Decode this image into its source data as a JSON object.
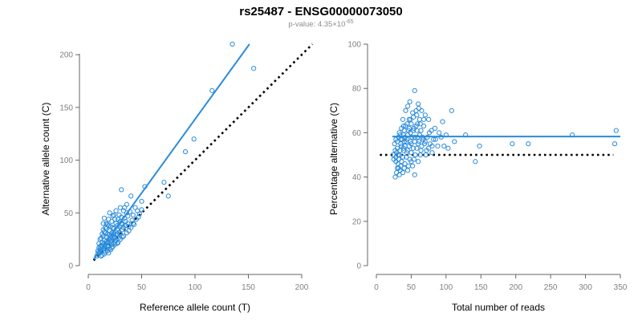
{
  "header": {
    "title": "rs25487 - ENSG00000073050",
    "pvalue_prefix": "p-value: 4.35×10",
    "pvalue_exponent": "-65"
  },
  "colors": {
    "points": "#2a8bdc",
    "fit": "#2a8bdc",
    "reference": "#000000",
    "axis": "#666666",
    "tick_text": "#808080"
  },
  "chart_data": [
    {
      "type": "scatter",
      "name": "left",
      "xlabel": "Reference allele count (T)",
      "ylabel": "Alternative allele count (C)",
      "xlim": [
        0,
        200
      ],
      "ylim": [
        0,
        210
      ],
      "xticks": [
        0,
        50,
        100,
        150,
        200
      ],
      "yticks": [
        0,
        50,
        100,
        150,
        200
      ],
      "fit_line": [
        [
          5,
          6
        ],
        [
          151,
          210
        ]
      ],
      "reference_line": [
        [
          5,
          5
        ],
        [
          210,
          210
        ]
      ],
      "points": [
        [
          135,
          210
        ],
        [
          155,
          187
        ],
        [
          116,
          166
        ],
        [
          99,
          120
        ],
        [
          91,
          108
        ],
        [
          75,
          66
        ],
        [
          71,
          79
        ],
        [
          53,
          75
        ],
        [
          50,
          61
        ],
        [
          40,
          66
        ],
        [
          36,
          58
        ],
        [
          34,
          55
        ],
        [
          31,
          72
        ],
        [
          36,
          50
        ],
        [
          42,
          48
        ],
        [
          37,
          40
        ],
        [
          34,
          45
        ],
        [
          32,
          39
        ],
        [
          30,
          42
        ],
        [
          29,
          48
        ],
        [
          28,
          35
        ],
        [
          27,
          38
        ],
        [
          25,
          44
        ],
        [
          24,
          30
        ],
        [
          23,
          36
        ],
        [
          22,
          42
        ],
        [
          21,
          28
        ],
        [
          20,
          33
        ],
        [
          19,
          25
        ],
        [
          19,
          38
        ],
        [
          18,
          30
        ],
        [
          18,
          22
        ],
        [
          17,
          27
        ],
        [
          17,
          35
        ],
        [
          16,
          20
        ],
        [
          16,
          31
        ],
        [
          15,
          24
        ],
        [
          15,
          18
        ],
        [
          14,
          28
        ],
        [
          14,
          16
        ],
        [
          13,
          22
        ],
        [
          13,
          30
        ],
        [
          12,
          14
        ],
        [
          12,
          19
        ],
        [
          11,
          25
        ],
        [
          11,
          12
        ],
        [
          10,
          17
        ],
        [
          10,
          21
        ],
        [
          9,
          14
        ],
        [
          9,
          11
        ],
        [
          8,
          9
        ],
        [
          14,
          40
        ],
        [
          15,
          45
        ],
        [
          20,
          50
        ],
        [
          26,
          52
        ],
        [
          30,
          55
        ],
        [
          24,
          48
        ],
        [
          22,
          20
        ],
        [
          26,
          24
        ],
        [
          28,
          26
        ],
        [
          30,
          30
        ],
        [
          32,
          34
        ],
        [
          35,
          38
        ],
        [
          38,
          37
        ],
        [
          25,
          22
        ],
        [
          27,
          30
        ],
        [
          29,
          31
        ],
        [
          33,
          28
        ],
        [
          18,
          14
        ],
        [
          20,
          16
        ],
        [
          22,
          17
        ],
        [
          16,
          13
        ],
        [
          13,
          10
        ],
        [
          12,
          9
        ],
        [
          11,
          15
        ],
        [
          19,
          19
        ],
        [
          21,
          23
        ],
        [
          23,
          25
        ],
        [
          25,
          27
        ],
        [
          24,
          35
        ],
        [
          26,
          40
        ],
        [
          28,
          44
        ],
        [
          31,
          46
        ],
        [
          33,
          52
        ],
        [
          37,
          47
        ],
        [
          39,
          51
        ],
        [
          44,
          55
        ],
        [
          46,
          52
        ],
        [
          41,
          43
        ],
        [
          43,
          39
        ],
        [
          47,
          46
        ],
        [
          15,
          32
        ],
        [
          17,
          40
        ],
        [
          19,
          44
        ],
        [
          21,
          37
        ],
        [
          23,
          47
        ],
        [
          12,
          26
        ],
        [
          14,
          34
        ],
        [
          16,
          36
        ],
        [
          18,
          39
        ],
        [
          20,
          29
        ],
        [
          22,
          31
        ],
        [
          13,
          18
        ],
        [
          15,
          21
        ],
        [
          17,
          23
        ],
        [
          10,
          13
        ],
        [
          11,
          18
        ],
        [
          27,
          34
        ],
        [
          29,
          37
        ],
        [
          31,
          40
        ],
        [
          33,
          36
        ],
        [
          35,
          42
        ],
        [
          24,
          27
        ],
        [
          26,
          29
        ],
        [
          28,
          22
        ],
        [
          30,
          25
        ],
        [
          32,
          27
        ],
        [
          36,
          31
        ],
        [
          38,
          33
        ],
        [
          40,
          36
        ],
        [
          42,
          40
        ],
        [
          45,
          44
        ],
        [
          48,
          49
        ],
        [
          50,
          53
        ],
        [
          19,
          12
        ],
        [
          21,
          15
        ],
        [
          23,
          18
        ],
        [
          25,
          20
        ],
        [
          27,
          21
        ],
        [
          15,
          11
        ],
        [
          16,
          16
        ],
        [
          18,
          18
        ],
        [
          20,
          21
        ],
        [
          22,
          24
        ],
        [
          24,
          26
        ]
      ]
    },
    {
      "type": "scatter",
      "name": "right",
      "xlabel": "Total number of reads",
      "ylabel": "Percentage alternative (C)",
      "xlim": [
        0,
        350
      ],
      "ylim": [
        0,
        100
      ],
      "xticks": [
        0,
        50,
        100,
        150,
        200,
        250,
        300,
        350
      ],
      "yticks": [
        0,
        20,
        40,
        60,
        80,
        100
      ],
      "fit_line": [
        [
          23,
          58.3
        ],
        [
          350,
          58.3
        ]
      ],
      "reference_line": [
        [
          5,
          50
        ],
        [
          340,
          50
        ]
      ],
      "points": [
        [
          55,
          79
        ],
        [
          48,
          74
        ],
        [
          45,
          72
        ],
        [
          60,
          73
        ],
        [
          42,
          70
        ],
        [
          65,
          70
        ],
        [
          52,
          69
        ],
        [
          108,
          70
        ],
        [
          58,
          68
        ],
        [
          70,
          68
        ],
        [
          38,
          66
        ],
        [
          47,
          66
        ],
        [
          62,
          66
        ],
        [
          75,
          66
        ],
        [
          44,
          64
        ],
        [
          50,
          64
        ],
        [
          57,
          63
        ],
        [
          68,
          63
        ],
        [
          95,
          65
        ],
        [
          84,
          62
        ],
        [
          36,
          62
        ],
        [
          40,
          61
        ],
        [
          46,
          61
        ],
        [
          53,
          61
        ],
        [
          64,
          61
        ],
        [
          79,
          61
        ],
        [
          90,
          60
        ],
        [
          100,
          59
        ],
        [
          33,
          60
        ],
        [
          39,
          59
        ],
        [
          45,
          59
        ],
        [
          51,
          58
        ],
        [
          59,
          58
        ],
        [
          66,
          58
        ],
        [
          73,
          58
        ],
        [
          82,
          57
        ],
        [
          32,
          58
        ],
        [
          37,
          57
        ],
        [
          43,
          56
        ],
        [
          49,
          56
        ],
        [
          55,
          56
        ],
        [
          61,
          56
        ],
        [
          69,
          55
        ],
        [
          77,
          55
        ],
        [
          88,
          54
        ],
        [
          97,
          54
        ],
        [
          30,
          56
        ],
        [
          35,
          55
        ],
        [
          41,
          54
        ],
        [
          47,
          54
        ],
        [
          53,
          53
        ],
        [
          58,
          53
        ],
        [
          64,
          52
        ],
        [
          72,
          52
        ],
        [
          80,
          51
        ],
        [
          30,
          53
        ],
        [
          34,
          52
        ],
        [
          39,
          52
        ],
        [
          44,
          51
        ],
        [
          50,
          51
        ],
        [
          56,
          50
        ],
        [
          63,
          50
        ],
        [
          71,
          50
        ],
        [
          29,
          51
        ],
        [
          33,
          50
        ],
        [
          38,
          49
        ],
        [
          43,
          49
        ],
        [
          48,
          48
        ],
        [
          54,
          48
        ],
        [
          60,
          47
        ],
        [
          28,
          49
        ],
        [
          32,
          48
        ],
        [
          36,
          47
        ],
        [
          41,
          46
        ],
        [
          46,
          45
        ],
        [
          52,
          45
        ],
        [
          28,
          47
        ],
        [
          31,
          46
        ],
        [
          35,
          45
        ],
        [
          40,
          44
        ],
        [
          45,
          43
        ],
        [
          30,
          44
        ],
        [
          34,
          43
        ],
        [
          38,
          42
        ],
        [
          29,
          42
        ],
        [
          33,
          41
        ],
        [
          55,
          41
        ],
        [
          27,
          40
        ],
        [
          32,
          44
        ],
        [
          50,
          47
        ],
        [
          39,
          53
        ],
        [
          44,
          57
        ],
        [
          49,
          60
        ],
        [
          54,
          62
        ],
        [
          59,
          64
        ],
        [
          41,
          58
        ],
        [
          36,
          54
        ],
        [
          31,
          50
        ],
        [
          27,
          52
        ],
        [
          26,
          55
        ],
        [
          25,
          48
        ],
        [
          24,
          50
        ],
        [
          28,
          57
        ],
        [
          34,
          59
        ],
        [
          42,
          63
        ],
        [
          47,
          62
        ],
        [
          62,
          59
        ],
        [
          67,
          57
        ],
        [
          76,
          60
        ],
        [
          85,
          57
        ],
        [
          93,
          58
        ],
        [
          103,
          53
        ],
        [
          112,
          56
        ],
        [
          128,
          59
        ],
        [
          142,
          47
        ],
        [
          148,
          54
        ],
        [
          195,
          55
        ],
        [
          218,
          55
        ],
        [
          281,
          59
        ],
        [
          344,
          61
        ],
        [
          342,
          55
        ],
        [
          55,
          58
        ],
        [
          60,
          55
        ],
        [
          65,
          54
        ],
        [
          70,
          56
        ],
        [
          75,
          53
        ],
        [
          80,
          54
        ],
        [
          45,
          52
        ],
        [
          35,
          57
        ],
        [
          40,
          56
        ],
        [
          50,
          55
        ],
        [
          58,
          61
        ],
        [
          63,
          64
        ],
        [
          68,
          66
        ],
        [
          49,
          66
        ],
        [
          53,
          67
        ],
        [
          57,
          70
        ],
        [
          61,
          71
        ],
        [
          39,
          63
        ]
      ]
    }
  ]
}
